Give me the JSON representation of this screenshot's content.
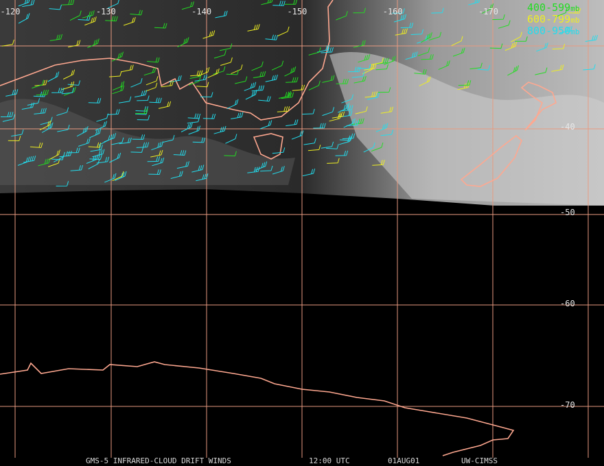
{
  "map": {
    "lon_labels": [
      "-120",
      "-130",
      "-140",
      "-150",
      "-160",
      "-170"
    ],
    "lat_labels": [
      "-40",
      "-50",
      "-60",
      "-70"
    ],
    "legend": [
      {
        "level": "400-599",
        "unit": "mb"
      },
      {
        "level": "600-799",
        "unit": "mb"
      },
      {
        "level": "800-950",
        "unit": "mb"
      }
    ],
    "footer": {
      "product": "GMS-5 INFRARED-CLOUD DRIFT WINDS",
      "time": "12:00 UTC",
      "date": "01AUG01",
      "source": "UW-CIMSS"
    }
  }
}
